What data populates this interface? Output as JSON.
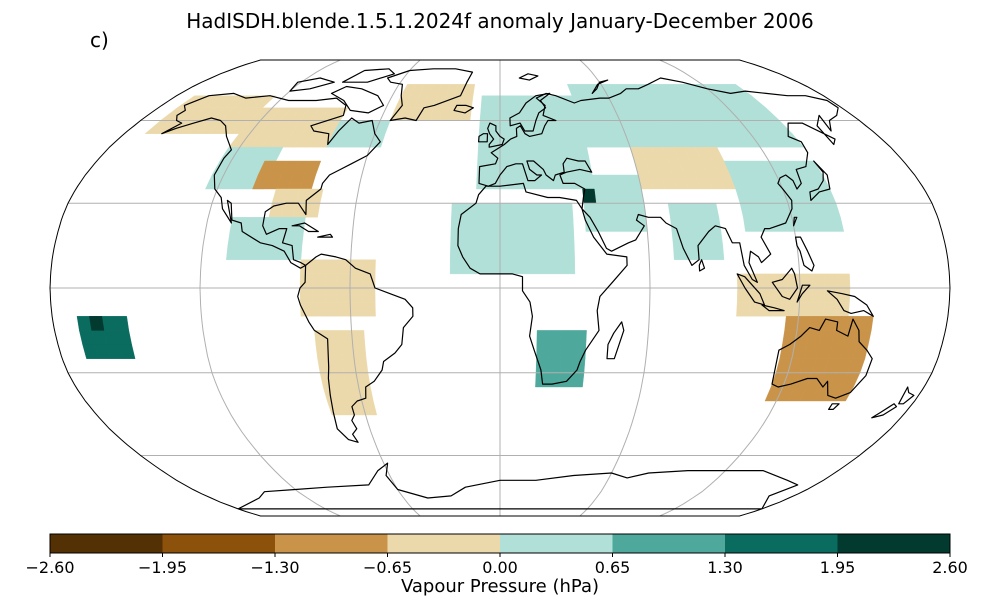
{
  "figure": {
    "title": "HadISDH.blende.1.5.1.2024f anomaly January-December 2006",
    "panel_label": "c)"
  },
  "map": {
    "projection": "Robinson",
    "gridlines": true,
    "coastlines": true,
    "cell_size_deg": 5,
    "palette_name": "BrBG"
  },
  "colorbar": {
    "label": "Vapour Pressure (hPa)",
    "orientation": "horizontal",
    "ticks": [
      "−2.60",
      "−1.95",
      "−1.30",
      "−0.65",
      "0.00",
      "0.65",
      "1.30",
      "1.95",
      "2.60"
    ],
    "bins": [
      {
        "from": -2.6,
        "to": -1.95,
        "color": "#543005"
      },
      {
        "from": -1.95,
        "to": -1.3,
        "color": "#8c510a"
      },
      {
        "from": -1.3,
        "to": -0.65,
        "color": "#c99449"
      },
      {
        "from": -0.65,
        "to": 0.0,
        "color": "#ecd9ab"
      },
      {
        "from": 0.0,
        "to": 0.65,
        "color": "#b0e0d8"
      },
      {
        "from": 0.65,
        "to": 1.3,
        "color": "#4ea89c"
      },
      {
        "from": 1.3,
        "to": 1.95,
        "color": "#0a6b5f"
      },
      {
        "from": 1.95,
        "to": 2.6,
        "color": "#023a30"
      }
    ]
  },
  "chart_data": {
    "type": "heatmap",
    "title": "HadISDH.blende.1.5.1.2024f anomaly January-December 2006",
    "colorbar_label": "Vapour Pressure (hPa)",
    "value_range": [
      -2.6,
      2.6
    ],
    "cells": [
      {
        "region": "Alaska / NW Canada",
        "lon": [
          -170,
          -125
        ],
        "lat": [
          55,
          70
        ],
        "value": -0.3
      },
      {
        "region": "Canada interior",
        "lon": [
          -125,
          -80
        ],
        "lat": [
          50,
          65
        ],
        "value": -0.3
      },
      {
        "region": "NE Canada / Labrador",
        "lon": [
          -80,
          -55
        ],
        "lat": [
          50,
          60
        ],
        "value": 0.3
      },
      {
        "region": "Western USA",
        "lon": [
          -125,
          -100
        ],
        "lat": [
          35,
          50
        ],
        "value": 0.3
      },
      {
        "region": "Central USA",
        "lon": [
          -105,
          -80
        ],
        "lat": [
          35,
          45
        ],
        "value": -1.0
      },
      {
        "region": "SE USA",
        "lon": [
          -95,
          -75
        ],
        "lat": [
          25,
          35
        ],
        "value": -0.3
      },
      {
        "region": "Mexico / Central America",
        "lon": [
          -110,
          -80
        ],
        "lat": [
          10,
          25
        ],
        "value": 0.3
      },
      {
        "region": "Northern South America",
        "lon": [
          -80,
          -50
        ],
        "lat": [
          -10,
          10
        ],
        "value": -0.3
      },
      {
        "region": "Southern South America",
        "lon": [
          -75,
          -55
        ],
        "lat": [
          -45,
          -15
        ],
        "value": -0.3
      },
      {
        "region": "Greenland / Iceland",
        "lon": [
          -55,
          -15
        ],
        "lat": [
          60,
          75
        ],
        "value": -0.3
      },
      {
        "region": "Europe",
        "lon": [
          -10,
          40
        ],
        "lat": [
          35,
          70
        ],
        "value": 0.3
      },
      {
        "region": "North Africa / Sahel",
        "lon": [
          -20,
          30
        ],
        "lat": [
          5,
          30
        ],
        "value": 0.3
      },
      {
        "region": "Middle East",
        "lon": [
          35,
          60
        ],
        "lat": [
          20,
          40
        ],
        "value": 0.3
      },
      {
        "region": "Southern Africa",
        "lon": [
          15,
          35
        ],
        "lat": [
          -35,
          -15
        ],
        "value": 0.9
      },
      {
        "region": "Russia / Siberia",
        "lon": [
          40,
          140
        ],
        "lat": [
          50,
          75
        ],
        "value": 0.3
      },
      {
        "region": "Central Asia",
        "lon": [
          60,
          100
        ],
        "lat": [
          35,
          50
        ],
        "value": -0.3
      },
      {
        "region": "India",
        "lon": [
          70,
          90
        ],
        "lat": [
          10,
          30
        ],
        "value": 0.3
      },
      {
        "region": "East Asia",
        "lon": [
          100,
          140
        ],
        "lat": [
          20,
          45
        ],
        "value": 0.3
      },
      {
        "region": "Indonesia",
        "lon": [
          95,
          140
        ],
        "lat": [
          -10,
          5
        ],
        "value": -0.3
      },
      {
        "region": "Northern Australia",
        "lon": [
          115,
          150
        ],
        "lat": [
          -20,
          -10
        ],
        "value": -1.0
      },
      {
        "region": "Southern Australia",
        "lon": [
          115,
          150
        ],
        "lat": [
          -40,
          -20
        ],
        "value": -1.0
      },
      {
        "region": "Pacific islands",
        "lon": [
          -170,
          -150
        ],
        "lat": [
          -25,
          -10
        ],
        "value": 1.5
      },
      {
        "region": "Pacific islands (peak)",
        "lon": [
          -165,
          -160
        ],
        "lat": [
          -15,
          -10
        ],
        "value": 2.3
      },
      {
        "region": "Mediterranean (peak)",
        "lon": [
          35,
          40
        ],
        "lat": [
          30,
          35
        ],
        "value": 2.3
      }
    ]
  }
}
